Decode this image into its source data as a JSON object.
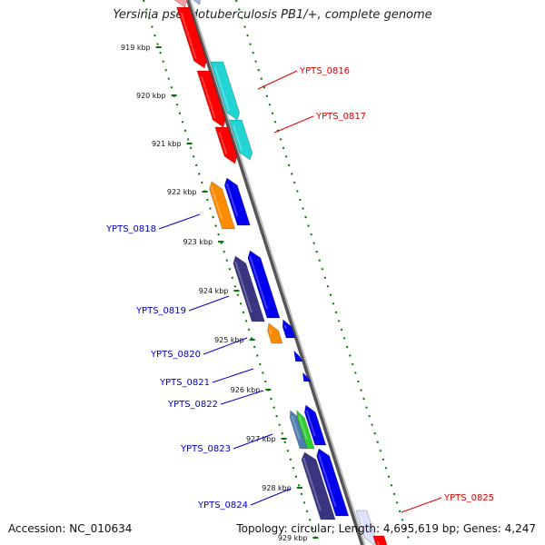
{
  "title": "Yersinia pseudotuberculosis PB1/+, complete genome",
  "accession": "Accession: NC_010634",
  "topology": "Topology: circular; Length: 4,695,619 bp; Genes: 4,247",
  "ticks": [
    "919 kbp",
    "920 kbp",
    "921 kbp",
    "922 kbp",
    "923 kbp",
    "924 kbp",
    "925 kbp",
    "926 kbp",
    "927 kbp",
    "928 kbp",
    "929 kbp"
  ],
  "gene_labels": [
    {
      "text": "YPTS_0816",
      "color": "#e00000"
    },
    {
      "text": "YPTS_0817",
      "color": "#e00000"
    },
    {
      "text": "YPTS_0818",
      "color": "#0000cc"
    },
    {
      "text": "YPTS_0819",
      "color": "#0000cc"
    },
    {
      "text": "YPTS_0820",
      "color": "#0000cc"
    },
    {
      "text": "YPTS_0821",
      "color": "#0000cc"
    },
    {
      "text": "YPTS_0822",
      "color": "#0000cc"
    },
    {
      "text": "YPTS_0823",
      "color": "#0000cc"
    },
    {
      "text": "YPTS_0824",
      "color": "#0000cc"
    },
    {
      "text": "YPTS_0825",
      "color": "#e00000"
    }
  ],
  "colors": {
    "red": "#ff0000",
    "cyan": "#22d4d4",
    "orange": "#ff8c00",
    "blue": "#0000ee",
    "navy": "#3a3580",
    "steel": "#4f7fb0",
    "green": "#33cc33",
    "backbone": "#8a8a8a",
    "ticks": "#007700"
  }
}
